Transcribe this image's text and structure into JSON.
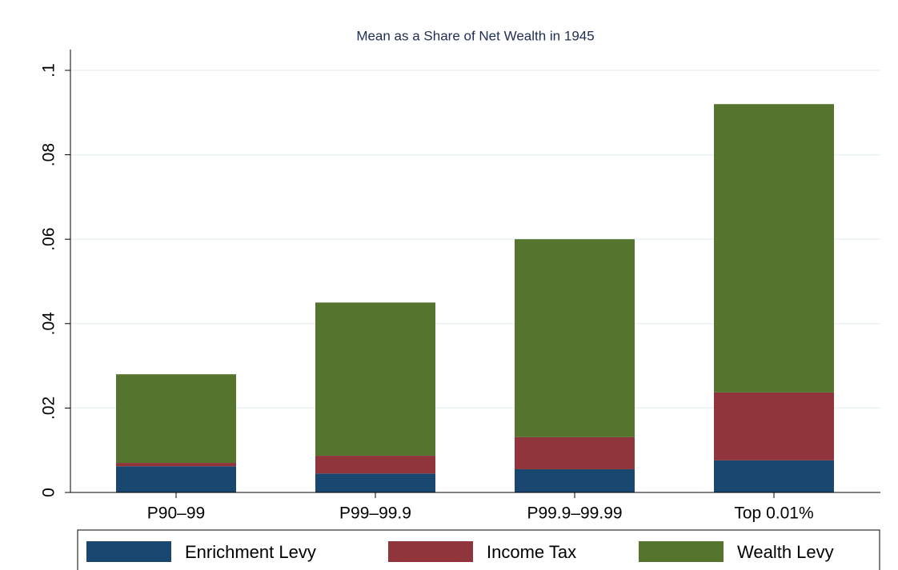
{
  "chart_data": {
    "type": "stacked_bar",
    "title": "Mean as a Share of Net Wealth in 1945",
    "categories": [
      "P90–99",
      "P99–99.9",
      "P99.9–99.99",
      "Top 0.01%"
    ],
    "series": [
      {
        "name": "Enrichment Levy",
        "color": "#1a476f",
        "values": [
          0.0062,
          0.0045,
          0.0055,
          0.0076
        ]
      },
      {
        "name": "Income Tax",
        "color": "#90353b",
        "values": [
          0.0008,
          0.0042,
          0.0076,
          0.0161
        ]
      },
      {
        "name": "Wealth Levy",
        "color": "#55752f",
        "values": [
          0.021,
          0.0363,
          0.0469,
          0.0683
        ]
      }
    ],
    "ylim": [
      0,
      0.1
    ],
    "yticks": [
      0,
      {
        "value": 0.02,
        "label": ".02"
      },
      {
        "value": 0.04,
        "label": ".04"
      },
      {
        "value": 0.06,
        "label": ".06"
      },
      {
        "value": 0.08,
        "label": ".08"
      },
      {
        "value": 0.1,
        "label": ".1"
      }
    ],
    "grid": true,
    "legend": "bottom"
  }
}
